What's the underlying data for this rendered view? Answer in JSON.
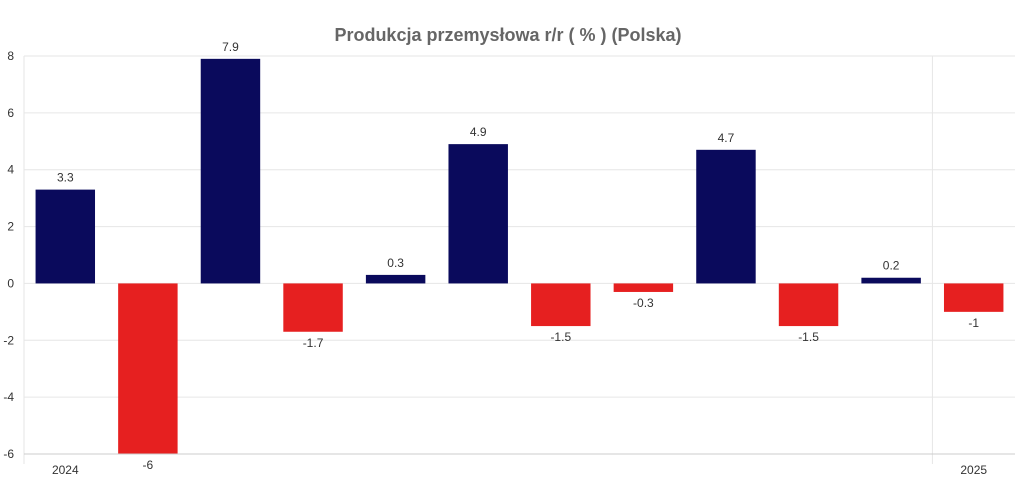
{
  "chart_data": {
    "type": "bar",
    "title": "Produkcja przemysłowa r/r ( % ) (Polska)",
    "xlabel": "",
    "ylabel": "",
    "ylim": [
      -6,
      8
    ],
    "yticks": [
      -6,
      -4,
      -2,
      0,
      2,
      4,
      6,
      8
    ],
    "grid": true,
    "legend": "none",
    "colors": {
      "positive": "#0a0a5c",
      "negative": "#e62020"
    },
    "categories": [
      "",
      "",
      "",
      "",
      "",
      "",
      "",
      "",
      "",
      "",
      "",
      ""
    ],
    "values": [
      3.3,
      -6,
      7.9,
      -1.7,
      0.3,
      4.9,
      -1.5,
      -0.3,
      4.7,
      -1.5,
      0.2,
      -1
    ],
    "data_labels": [
      "3.3",
      "-6",
      "7.9",
      "-1.7",
      "0.3",
      "4.9",
      "-1.5",
      "-0.3",
      "4.7",
      "-1.5",
      "0.2",
      "-1"
    ],
    "x_axis_labels": [
      {
        "text": "2024",
        "category_index": 0
      },
      {
        "text": "2025",
        "category_index": 11
      }
    ]
  }
}
